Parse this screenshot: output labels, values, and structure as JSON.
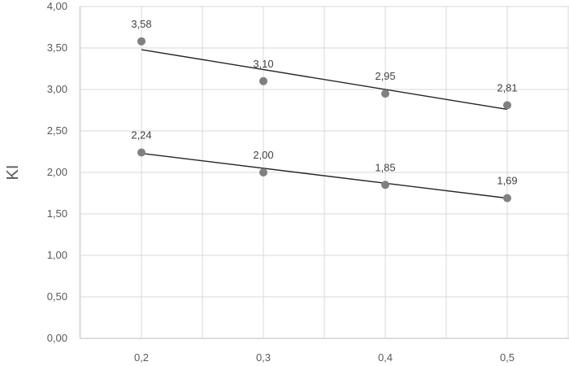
{
  "chart_data": {
    "type": "scatter",
    "title": "",
    "xlabel": "",
    "ylabel": "KI",
    "x": [
      0.2,
      0.3,
      0.4,
      0.5
    ],
    "x_tick_labels": [
      "0,2",
      "0,3",
      "0,4",
      "0,5"
    ],
    "y_ticks": [
      0,
      0.5,
      1,
      1.5,
      2,
      2.5,
      3,
      3.5,
      4
    ],
    "y_tick_labels": [
      "0,00",
      "0,50",
      "1,00",
      "1,50",
      "2,00",
      "2,50",
      "3,00",
      "3,50",
      "4,00"
    ],
    "ylim": [
      0,
      4
    ],
    "grid": true,
    "series": [
      {
        "values": [
          3.58,
          3.1,
          2.95,
          2.81
        ],
        "labels": [
          "3,58",
          "3,10",
          "2,95",
          "2,81"
        ],
        "trendline": [
          3.48,
          3.24,
          3.0,
          2.76
        ],
        "marker_color": "#808080",
        "line_color": "#262626"
      },
      {
        "values": [
          2.24,
          2.0,
          1.85,
          1.69
        ],
        "labels": [
          "2,24",
          "2,00",
          "1,85",
          "1,69"
        ],
        "trendline": [
          2.23,
          2.05,
          1.87,
          1.69
        ],
        "marker_color": "#808080",
        "line_color": "#262626"
      }
    ]
  }
}
